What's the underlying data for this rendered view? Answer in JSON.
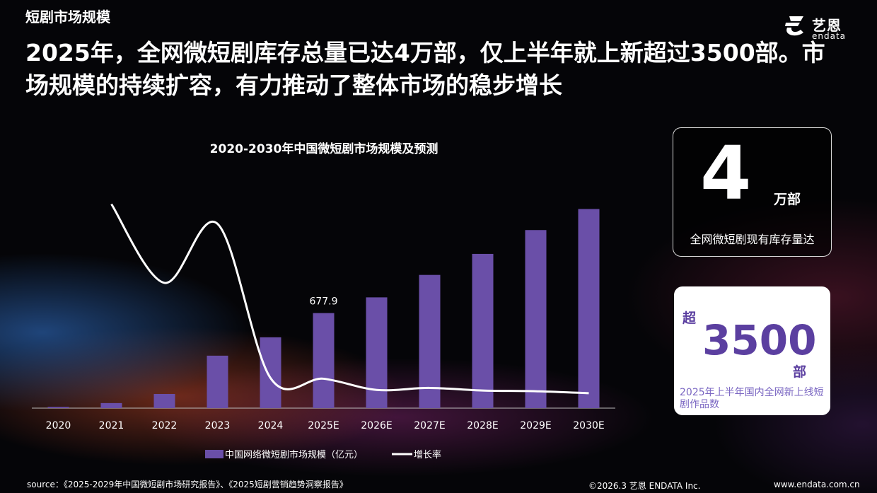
{
  "section_label": "短剧市场规模",
  "logo": {
    "cn": "艺恩",
    "en": "endata"
  },
  "headline": "2025年，全网微短剧库存总量已达4万部，仅上半年就上新超过3500部。市场规模的持续扩容，有力推动了整体市场的稳步增长",
  "stock_card": {
    "number": "4",
    "unit": "万部",
    "desc": "全网微短剧现有库存量达"
  },
  "new_card": {
    "prefix": "超",
    "number": "3500",
    "unit": "部",
    "desc": "2025年上半年国内全网新上线短剧作品数"
  },
  "footer": {
    "source": "source：《2025-2029年中国微短剧市场研究报告》、《2025短剧营销趋势洞察报告》",
    "copyright": "©2026.3  艺恩 ENDATA Inc.",
    "url": "www.endata.com.cn"
  },
  "colors": {
    "bar": "#6a4fa8",
    "line": "#ffffff",
    "card_accent": "#5b3fa0"
  },
  "chart_data": {
    "type": "bar",
    "title": "2020-2030年中国微短剧市场规模及预测",
    "categories": [
      "2020",
      "2021",
      "2022",
      "2023",
      "2024",
      "2025E",
      "2026E",
      "2027E",
      "2028E",
      "2029E",
      "2030E"
    ],
    "ylim": [
      0,
      1700
    ],
    "series": [
      {
        "name": "中国网络微短剧市场规模（亿元）",
        "type": "bar",
        "values": [
          9,
          36,
          101,
          374,
          505,
          677.9,
          790,
          950,
          1100,
          1270,
          1420
        ],
        "labels": [
          null,
          null,
          null,
          null,
          null,
          "677.9",
          null,
          null,
          null,
          null,
          null
        ]
      },
      {
        "name": "增长率",
        "type": "line",
        "values": [
          null,
          300,
          180,
          270,
          35,
          34,
          17,
          20,
          16,
          15,
          12
        ]
      }
    ],
    "line_ylim": [
      0,
      320
    ],
    "legend": "bottom-center"
  }
}
